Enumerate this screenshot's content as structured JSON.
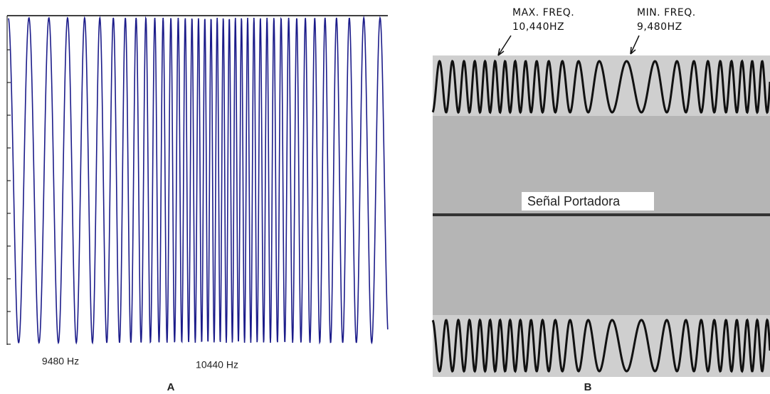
{
  "panel_a": {
    "labels": [
      "9480 Hz",
      "10440 Hz"
    ],
    "caption": "A"
  },
  "panel_b": {
    "annotations": [
      {
        "title": "MAX. FREQ.",
        "value": "10,440HZ"
      },
      {
        "title": "MIN. FREQ.",
        "value": "9,480HZ"
      }
    ],
    "carrier_label": "Señal Portadora",
    "caption": "B"
  }
}
